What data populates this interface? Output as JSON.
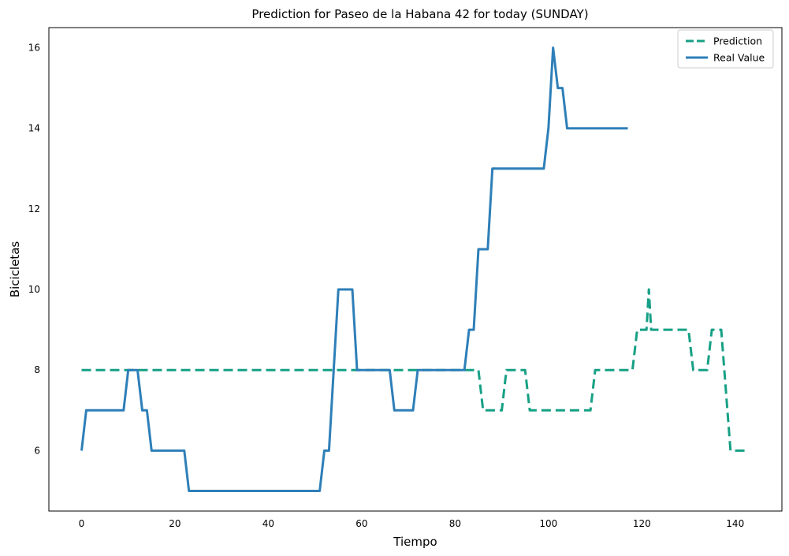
{
  "chart_data": {
    "type": "line",
    "title": "Prediction for Paseo de la Habana 42 for today (SUNDAY)",
    "xlabel": "Tiempo",
    "ylabel": "Bicicletas",
    "xlim": [
      -7,
      150
    ],
    "ylim": [
      4.5,
      16.5
    ],
    "xticks": [
      0,
      20,
      40,
      60,
      80,
      100,
      120,
      140
    ],
    "yticks": [
      6,
      8,
      10,
      12,
      14,
      16
    ],
    "grid": false,
    "legend_position": "top-right",
    "series": [
      {
        "name": "Prediction",
        "color": "#16a085",
        "style": "dashed",
        "points": [
          [
            0,
            8
          ],
          [
            85,
            8
          ],
          [
            86,
            7
          ],
          [
            90,
            7
          ],
          [
            91,
            8
          ],
          [
            95,
            8
          ],
          [
            96,
            7
          ],
          [
            109,
            7
          ],
          [
            110,
            8
          ],
          [
            118,
            8
          ],
          [
            119,
            9
          ],
          [
            121,
            9
          ],
          [
            121.5,
            10
          ],
          [
            122,
            9
          ],
          [
            130,
            9
          ],
          [
            131,
            8
          ],
          [
            134,
            8
          ],
          [
            135,
            9
          ],
          [
            137,
            9
          ],
          [
            139,
            6
          ],
          [
            143,
            6
          ]
        ]
      },
      {
        "name": "Real Value",
        "color": "#2e7fb8",
        "style": "solid",
        "points": [
          [
            0,
            6
          ],
          [
            1,
            7
          ],
          [
            9,
            7
          ],
          [
            10,
            8
          ],
          [
            12,
            8
          ],
          [
            13,
            7
          ],
          [
            14,
            7
          ],
          [
            15,
            6
          ],
          [
            22,
            6
          ],
          [
            23,
            5
          ],
          [
            51,
            5
          ],
          [
            52,
            6
          ],
          [
            53,
            6
          ],
          [
            55,
            10
          ],
          [
            58,
            10
          ],
          [
            59,
            8
          ],
          [
            66,
            8
          ],
          [
            67,
            7
          ],
          [
            71,
            7
          ],
          [
            72,
            8
          ],
          [
            82,
            8
          ],
          [
            83,
            9
          ],
          [
            84,
            9
          ],
          [
            85,
            11
          ],
          [
            87,
            11
          ],
          [
            88,
            13
          ],
          [
            99,
            13
          ],
          [
            100,
            14
          ],
          [
            101,
            16
          ],
          [
            102,
            15
          ],
          [
            103,
            15
          ],
          [
            104,
            14
          ],
          [
            117,
            14
          ]
        ]
      }
    ]
  }
}
